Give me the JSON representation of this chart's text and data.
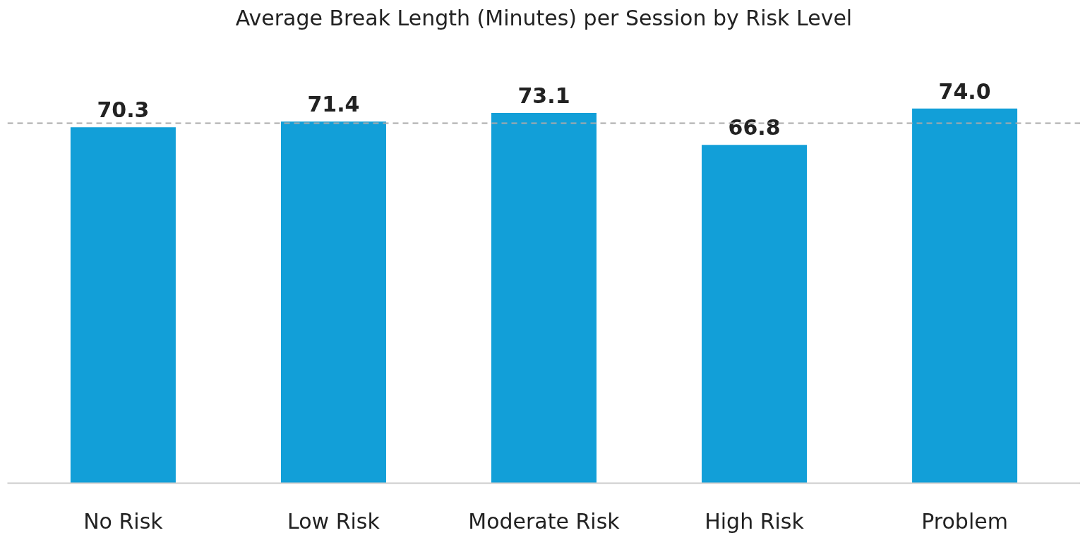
{
  "chart_data": {
    "type": "bar",
    "title": "Average Break Length (Minutes) per Session by Risk Level",
    "categories": [
      "No Risk",
      "Low Risk",
      "Moderate Risk",
      "High Risk",
      "Problem"
    ],
    "values": [
      70.3,
      71.4,
      73.1,
      66.8,
      74.0
    ],
    "color": "#129fd8",
    "value_labels": [
      "70.3",
      "71.4",
      "73.1",
      "66.8",
      "74.0"
    ],
    "ref_lines": [
      {
        "axis": "y",
        "value": 71.1,
        "color": "#aaaaaa",
        "line_style": "dashed"
      }
    ],
    "grid": false
  }
}
